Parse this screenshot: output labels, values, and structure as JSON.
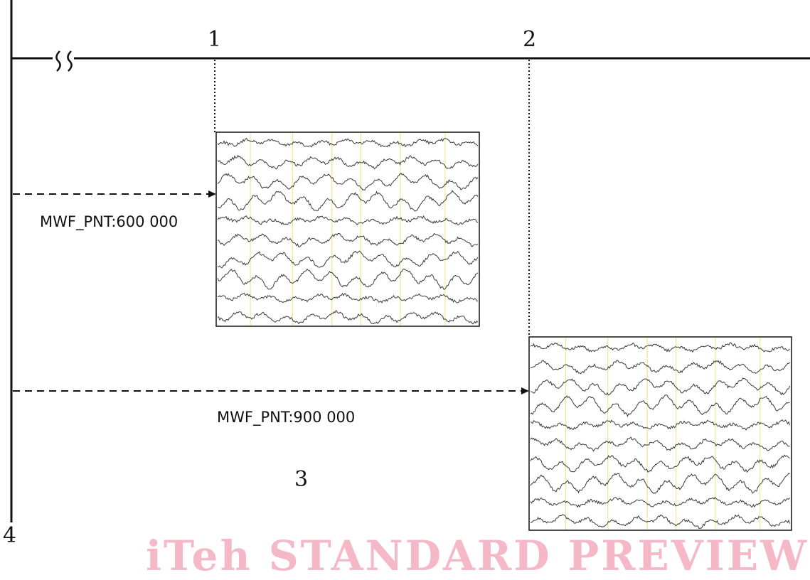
{
  "callouts": {
    "c1": "1",
    "c2": "2",
    "c3": "3",
    "c4": "4"
  },
  "labels": {
    "pnt_600": "MWF_PNT:600 000",
    "pnt_900": "MWF_PNT:900 000"
  },
  "watermark": "iTeh STANDARD PREVIEW",
  "colors": {
    "line": "#111111",
    "trace": "#3a3a3a",
    "marker": "#f2e27a",
    "watermark": "#f4b8c6"
  },
  "icons": {
    "axis_break": "axis-break-icon",
    "arrow": "arrow-head-icon"
  },
  "waveforms": {
    "channels": 10
  }
}
